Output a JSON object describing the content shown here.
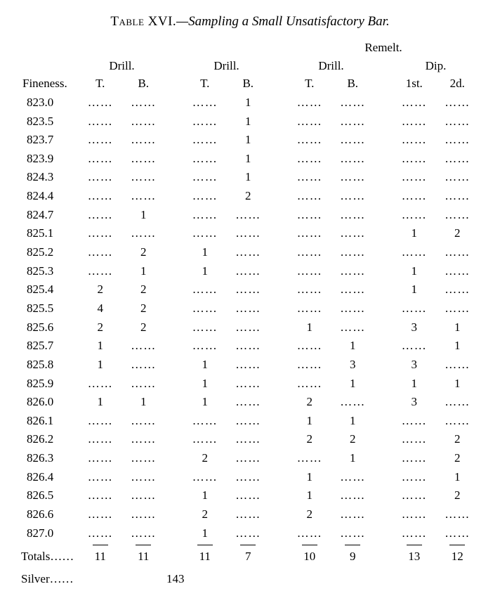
{
  "title_label": "Table XVI.",
  "title_desc": "—Sampling a Small Unsatisfactory Bar.",
  "headers": {
    "remelt": "Remelt.",
    "drill": "Drill.",
    "dip": "Dip.",
    "fineness": "Fineness.",
    "T": "T.",
    "B": "B.",
    "first": "1st.",
    "second": "2d."
  },
  "dots": "……",
  "rows": [
    {
      "f": "823.0",
      "d1t": "……",
      "d1b": "……",
      "d2t": "……",
      "d2b": "1",
      "d3t": "……",
      "d3b": "……",
      "p1": "……",
      "p2": "……"
    },
    {
      "f": "823.5",
      "d1t": "……",
      "d1b": "……",
      "d2t": "……",
      "d2b": "1",
      "d3t": "……",
      "d3b": "……",
      "p1": "……",
      "p2": "……"
    },
    {
      "f": "823.7",
      "d1t": "……",
      "d1b": "……",
      "d2t": "……",
      "d2b": "1",
      "d3t": "……",
      "d3b": "……",
      "p1": "……",
      "p2": "……"
    },
    {
      "f": "823.9",
      "d1t": "……",
      "d1b": "……",
      "d2t": "……",
      "d2b": "1",
      "d3t": "……",
      "d3b": "……",
      "p1": "……",
      "p2": "……"
    },
    {
      "f": "824.3",
      "d1t": "……",
      "d1b": "……",
      "d2t": "……",
      "d2b": "1",
      "d3t": "……",
      "d3b": "……",
      "p1": "……",
      "p2": "……"
    },
    {
      "f": "824.4",
      "d1t": "……",
      "d1b": "……",
      "d2t": "……",
      "d2b": "2",
      "d3t": "……",
      "d3b": "……",
      "p1": "……",
      "p2": "……"
    },
    {
      "f": "824.7",
      "d1t": "……",
      "d1b": "1",
      "d2t": "……",
      "d2b": "……",
      "d3t": "……",
      "d3b": "……",
      "p1": "……",
      "p2": "……"
    },
    {
      "f": "825.1",
      "d1t": "……",
      "d1b": "……",
      "d2t": "……",
      "d2b": "……",
      "d3t": "……",
      "d3b": "……",
      "p1": "1",
      "p2": "2"
    },
    {
      "f": "825.2",
      "d1t": "……",
      "d1b": "2",
      "d2t": "1",
      "d2b": "……",
      "d3t": "……",
      "d3b": "……",
      "p1": "……",
      "p2": "……"
    },
    {
      "f": "825.3",
      "d1t": "……",
      "d1b": "1",
      "d2t": "1",
      "d2b": "……",
      "d3t": "……",
      "d3b": "……",
      "p1": "1",
      "p2": "……"
    },
    {
      "f": "825.4",
      "d1t": "2",
      "d1b": "2",
      "d2t": "……",
      "d2b": "……",
      "d3t": "……",
      "d3b": "……",
      "p1": "1",
      "p2": "……"
    },
    {
      "f": "825.5",
      "d1t": "4",
      "d1b": "2",
      "d2t": "……",
      "d2b": "……",
      "d3t": "……",
      "d3b": "……",
      "p1": "……",
      "p2": "……"
    },
    {
      "f": "825.6",
      "d1t": "2",
      "d1b": "2",
      "d2t": "……",
      "d2b": "……",
      "d3t": "1",
      "d3b": "……",
      "p1": "3",
      "p2": "1"
    },
    {
      "f": "825.7",
      "d1t": "1",
      "d1b": "……",
      "d2t": "……",
      "d2b": "……",
      "d3t": "……",
      "d3b": "1",
      "p1": "……",
      "p2": "1"
    },
    {
      "f": "825.8",
      "d1t": "1",
      "d1b": "……",
      "d2t": "1",
      "d2b": "……",
      "d3t": "……",
      "d3b": "3",
      "p1": "3",
      "p2": "……"
    },
    {
      "f": "825.9",
      "d1t": "……",
      "d1b": "……",
      "d2t": "1",
      "d2b": "……",
      "d3t": "……",
      "d3b": "1",
      "p1": "1",
      "p2": "1"
    },
    {
      "f": "826.0",
      "d1t": "1",
      "d1b": "1",
      "d2t": "1",
      "d2b": "……",
      "d3t": "2",
      "d3b": "……",
      "p1": "3",
      "p2": "……"
    },
    {
      "f": "826.1",
      "d1t": "……",
      "d1b": "……",
      "d2t": "……",
      "d2b": "……",
      "d3t": "1",
      "d3b": "1",
      "p1": "……",
      "p2": "……"
    },
    {
      "f": "826.2",
      "d1t": "……",
      "d1b": "……",
      "d2t": "……",
      "d2b": "……",
      "d3t": "2",
      "d3b": "2",
      "p1": "……",
      "p2": "2"
    },
    {
      "f": "826.3",
      "d1t": "……",
      "d1b": "……",
      "d2t": "2",
      "d2b": "……",
      "d3t": "……",
      "d3b": "1",
      "p1": "……",
      "p2": "2"
    },
    {
      "f": "826.4",
      "d1t": "……",
      "d1b": "……",
      "d2t": "……",
      "d2b": "……",
      "d3t": "1",
      "d3b": "……",
      "p1": "……",
      "p2": "1"
    },
    {
      "f": "826.5",
      "d1t": "……",
      "d1b": "……",
      "d2t": "1",
      "d2b": "……",
      "d3t": "1",
      "d3b": "……",
      "p1": "……",
      "p2": "2"
    },
    {
      "f": "826.6",
      "d1t": "……",
      "d1b": "……",
      "d2t": "2",
      "d2b": "……",
      "d3t": "2",
      "d3b": "……",
      "p1": "……",
      "p2": "……"
    },
    {
      "f": "827.0",
      "d1t": "……",
      "d1b": "……",
      "d2t": "1",
      "d2b": "……",
      "d3t": "……",
      "d3b": "……",
      "p1": "……",
      "p2": "……"
    }
  ],
  "totals": {
    "label": "Totals……",
    "d1t": "11",
    "d1b": "11",
    "d2t": "11",
    "d2b": "7",
    "d3t": "10",
    "d3b": "9",
    "p1": "13",
    "p2": "12"
  },
  "silver": {
    "label": "Silver……",
    "value": "143"
  }
}
